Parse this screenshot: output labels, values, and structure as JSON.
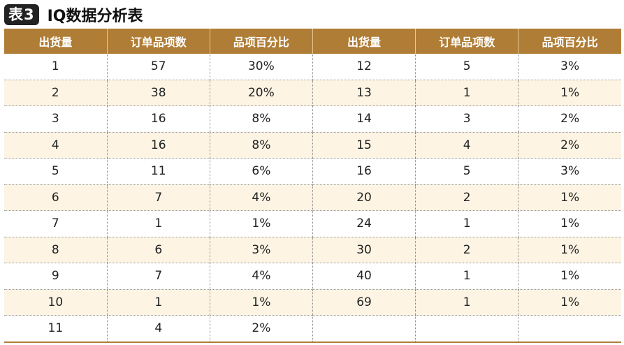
{
  "title": {
    "badge": "表3",
    "text": "IQ数据分析表"
  },
  "headers": [
    "出货量",
    "订单品项数",
    "品项百分比",
    "出货量",
    "订单品项数",
    "品项百分比"
  ],
  "rows": [
    [
      "1",
      "57",
      "30%",
      "12",
      "5",
      "3%"
    ],
    [
      "2",
      "38",
      "20%",
      "13",
      "1",
      "1%"
    ],
    [
      "3",
      "16",
      "8%",
      "14",
      "3",
      "2%"
    ],
    [
      "4",
      "16",
      "8%",
      "15",
      "4",
      "2%"
    ],
    [
      "5",
      "11",
      "6%",
      "16",
      "5",
      "3%"
    ],
    [
      "6",
      "7",
      "4%",
      "20",
      "2",
      "1%"
    ],
    [
      "7",
      "1",
      "1%",
      "24",
      "1",
      "1%"
    ],
    [
      "8",
      "6",
      "3%",
      "30",
      "2",
      "1%"
    ],
    [
      "9",
      "7",
      "4%",
      "40",
      "1",
      "1%"
    ],
    [
      "10",
      "1",
      "1%",
      "69",
      "1",
      "1%"
    ],
    [
      "11",
      "4",
      "2%",
      "",
      "",
      ""
    ]
  ]
}
